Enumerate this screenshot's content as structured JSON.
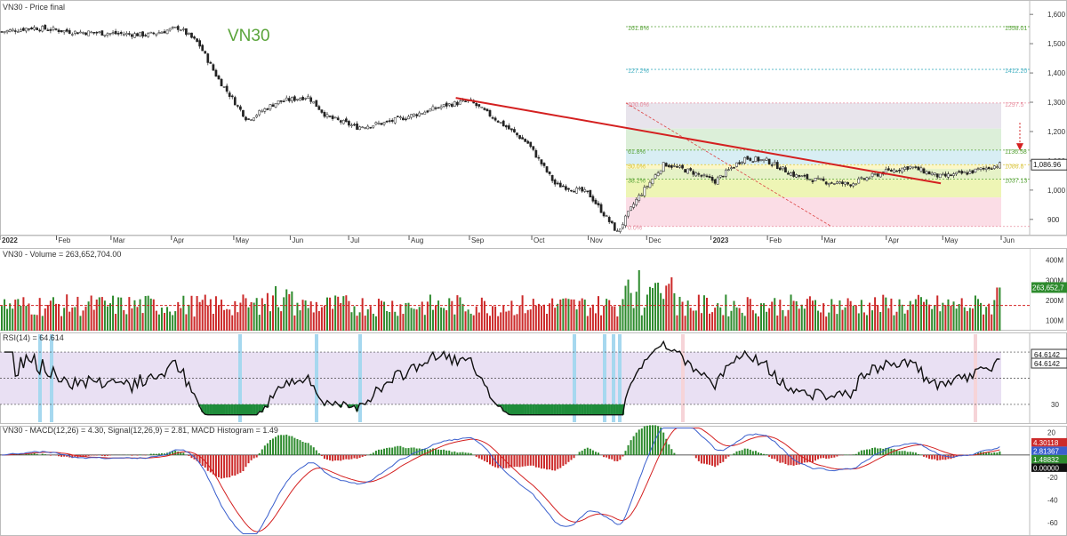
{
  "window": {
    "title": "VN30 - Price final"
  },
  "colors": {
    "up": "#2e8b2e",
    "down": "#cc2a2a",
    "trendline": "#d42020",
    "rsi_band": "#e9e0f3",
    "rsi_highlight_blue": "#a6d8ef",
    "rsi_highlight_pink": "#f6d4d8",
    "macd_line": "#3a5fcd",
    "signal_line": "#d42020",
    "symbol_text": "#5aa43a",
    "fib_green": "#5aa43a",
    "fib_cyan": "#4bb3c4",
    "fib_pink": "#e88fa0"
  },
  "chart_data": [
    {
      "type": "candlestick",
      "panel": "price",
      "title": "VN30 - Price final",
      "symbol_label": "VN30",
      "last_value_label": "1,086.96",
      "x": [
        "2022",
        "Feb",
        "Mar",
        "Apr",
        "May",
        "Jun",
        "Jul",
        "Aug",
        "Sep",
        "Oct",
        "Nov",
        "Dec",
        "2023",
        "Feb",
        "Mar",
        "Apr",
        "May",
        "Jun"
      ],
      "close_path": [
        [
          "2022-01-03",
          1540
        ],
        [
          "2022-01-20",
          1555
        ],
        [
          "2022-02-10",
          1540
        ],
        [
          "2022-03-01",
          1535
        ],
        [
          "2022-03-20",
          1530
        ],
        [
          "2022-04-05",
          1555
        ],
        [
          "2022-04-15",
          1500
        ],
        [
          "2022-04-25",
          1380
        ],
        [
          "2022-05-10",
          1240
        ],
        [
          "2022-05-25",
          1300
        ],
        [
          "2022-06-10",
          1320
        ],
        [
          "2022-06-20",
          1250
        ],
        [
          "2022-07-05",
          1215
        ],
        [
          "2022-07-20",
          1230
        ],
        [
          "2022-08-05",
          1260
        ],
        [
          "2022-08-20",
          1290
        ],
        [
          "2022-09-01",
          1305
        ],
        [
          "2022-09-15",
          1240
        ],
        [
          "2022-10-01",
          1160
        ],
        [
          "2022-10-15",
          1020
        ],
        [
          "2022-11-01",
          990
        ],
        [
          "2022-11-16",
          855
        ],
        [
          "2022-11-25",
          960
        ],
        [
          "2022-12-10",
          1090
        ],
        [
          "2022-12-25",
          1060
        ],
        [
          "2023-01-05",
          1030
        ],
        [
          "2023-01-20",
          1110
        ],
        [
          "2023-02-01",
          1100
        ],
        [
          "2023-02-15",
          1050
        ],
        [
          "2023-03-01",
          1030
        ],
        [
          "2023-03-15",
          1020
        ],
        [
          "2023-04-01",
          1060
        ],
        [
          "2023-04-15",
          1080
        ],
        [
          "2023-05-01",
          1045
        ],
        [
          "2023-05-15",
          1060
        ],
        [
          "2023-05-31",
          1087
        ]
      ],
      "trendline": [
        [
          "2022-08-25",
          1315
        ],
        [
          "2023-05-01",
          1023
        ]
      ],
      "fibonacci": {
        "levels": [
          {
            "label": "161.8%",
            "value": 1558.01
          },
          {
            "label": "127.2%",
            "value": 1412.2
          },
          {
            "label": "100.0%",
            "value": 1297.5
          },
          {
            "label": "61.8%",
            "value": 1136.58
          },
          {
            "label": "50.0%",
            "value": 1086.8
          },
          {
            "label": "38.2%",
            "value": 1037.13
          },
          {
            "label": "0.0%",
            "value": 876
          }
        ],
        "price_labels": [
          "1558.01",
          "1412.20",
          "1297.5",
          "1136.58",
          "1086.8",
          "1037.13"
        ]
      },
      "yaxis": {
        "ticks": [
          "1,600",
          "1,500",
          "1,400",
          "1,300",
          "1,200",
          "1,100",
          "1,000",
          "900"
        ],
        "ylim": [
          860,
          1640
        ]
      }
    },
    {
      "type": "bar",
      "panel": "volume",
      "title": "VN30 - Volume = 263,652,704.00",
      "last_value_label": "263,652,7",
      "yaxis": {
        "ticks": [
          "400M",
          "300M",
          "200M",
          "100M"
        ],
        "ylim": [
          50,
          460
        ]
      },
      "reference_line": 175
    },
    {
      "type": "line",
      "panel": "rsi",
      "title": "RSI(14) = 64.614",
      "last_value_labels": [
        "64.6142",
        "64.6142"
      ],
      "levels": [
        70,
        50,
        30
      ],
      "yaxis": {
        "ticks": [
          "70",
          "30"
        ],
        "ylim": [
          15,
          85
        ]
      }
    },
    {
      "type": "line",
      "panel": "macd",
      "title": "VN30 - MACD(12,26) = 4.30, Signal(12,26,9) = 2.81, MACD Histogram = 1.49",
      "series": [
        {
          "name": "MACD(12,26)",
          "last": "4.30"
        },
        {
          "name": "Signal(12,26,9)",
          "last": "2.81"
        },
        {
          "name": "MACD Histogram",
          "last": "1.49"
        }
      ],
      "last_value_labels": [
        "4.30118",
        "2.81367",
        "1.48832",
        "0.00000"
      ],
      "yaxis": {
        "ticks": [
          "20",
          "0",
          "-20",
          "-40",
          "-60"
        ],
        "ylim": [
          -72,
          26
        ]
      }
    }
  ]
}
